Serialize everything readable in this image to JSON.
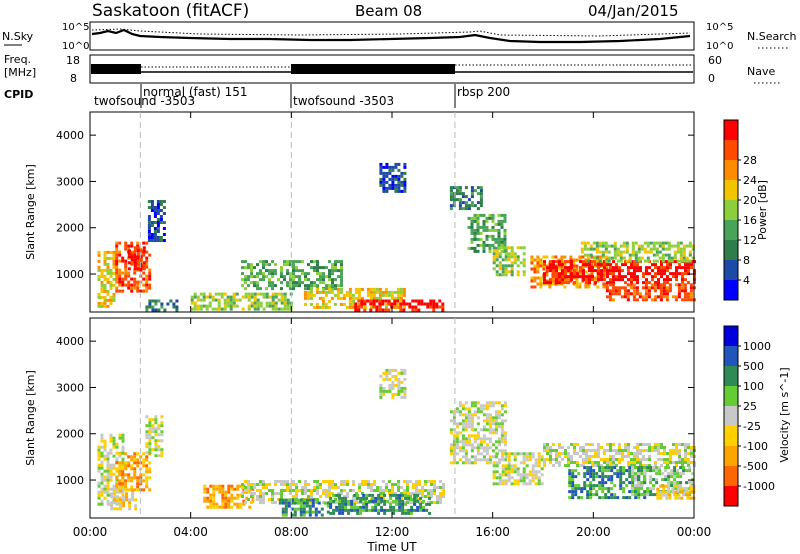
{
  "header": {
    "site": "Saskatoon (fitACF)",
    "beam": "Beam 08",
    "date": "04/Jan/2015"
  },
  "nsky_panel": {
    "left_label": "N.Sky",
    "right_label": "N.Search",
    "left_ticks": [
      "10^5",
      "10^0"
    ],
    "right_ticks": [
      "10^5",
      "10^0"
    ]
  },
  "freq_panel": {
    "left_label_1": "Freq.",
    "left_label_2": "[MHz]",
    "right_label": "Nave",
    "left_ticks": [
      "18",
      "8"
    ],
    "right_ticks": [
      "60",
      "0"
    ]
  },
  "cpid": {
    "label": "CPID",
    "modes": [
      {
        "name": "twofsound -3503",
        "start_hour": 0
      },
      {
        "name": "normal (fast) 151",
        "start_hour": 2
      },
      {
        "name": "twofsound -3503",
        "start_hour": 8
      },
      {
        "name": "rbsp 200",
        "start_hour": 14.5
      }
    ]
  },
  "time_axis": {
    "label": "Time UT",
    "ticks": [
      "00:00",
      "04:00",
      "08:00",
      "12:00",
      "16:00",
      "20:00",
      "00:00"
    ]
  },
  "colors": {
    "power": [
      "#0000ff",
      "#1c4aa6",
      "#2f7d4a",
      "#4aa35a",
      "#8ccf3a",
      "#f2c400",
      "#ff8c00",
      "#ff4a00",
      "#ff0000"
    ],
    "velocity": [
      "#0000dd",
      "#2255bb",
      "#2e8b57",
      "#66cc33",
      "#c8c8c8",
      "#ffd000",
      "#ffa500",
      "#ff6600",
      "#ff0000"
    ]
  },
  "chart_data": [
    {
      "type": "heatmap",
      "ylabel": "Slant Range [km]",
      "xlabel": "Time UT",
      "xlim": [
        0,
        24
      ],
      "ylim": [
        180,
        4500
      ],
      "yticks": [
        "1000",
        "2000",
        "3000",
        "4000"
      ],
      "colorbar": {
        "label": "Power [dB]",
        "ticks": [
          "4",
          "8",
          "12",
          "16",
          "20",
          "24",
          "28"
        ]
      },
      "regions": [
        {
          "t0": 0.3,
          "t1": 1.0,
          "r0": 300,
          "r1": 1500,
          "level": 5
        },
        {
          "t0": 1.0,
          "t1": 2.4,
          "r0": 600,
          "r1": 1700,
          "level": 7
        },
        {
          "t0": 1.5,
          "t1": 2.2,
          "r0": 1100,
          "r1": 1600,
          "level": 8
        },
        {
          "t0": 2.3,
          "t1": 2.9,
          "r0": 1700,
          "r1": 2600,
          "level": 1
        },
        {
          "t0": 2.2,
          "t1": 3.5,
          "r0": 250,
          "r1": 450,
          "level": 2
        },
        {
          "t0": 4.0,
          "t1": 8.0,
          "r0": 250,
          "r1": 600,
          "level": 4
        },
        {
          "t0": 6.0,
          "t1": 10.0,
          "r0": 700,
          "r1": 1300,
          "level": 3
        },
        {
          "t0": 8.5,
          "t1": 12.5,
          "r0": 250,
          "r1": 700,
          "level": 5
        },
        {
          "t0": 10.5,
          "t1": 14.0,
          "r0": 250,
          "r1": 450,
          "level": 8
        },
        {
          "t0": 11.5,
          "t1": 12.5,
          "r0": 2800,
          "r1": 3400,
          "level": 1
        },
        {
          "t0": 14.3,
          "t1": 15.5,
          "r0": 2400,
          "r1": 2900,
          "level": 2
        },
        {
          "t0": 15.0,
          "t1": 16.5,
          "r0": 1500,
          "r1": 2300,
          "level": 3
        },
        {
          "t0": 16.0,
          "t1": 17.3,
          "r0": 1000,
          "r1": 1600,
          "level": 4
        },
        {
          "t0": 17.5,
          "t1": 20.5,
          "r0": 700,
          "r1": 1400,
          "level": 6
        },
        {
          "t0": 18.0,
          "t1": 24.0,
          "r0": 800,
          "r1": 1300,
          "level": 8
        },
        {
          "t0": 19.5,
          "t1": 24.0,
          "r0": 1300,
          "r1": 1700,
          "level": 4
        },
        {
          "t0": 20.5,
          "t1": 24.0,
          "r0": 450,
          "r1": 800,
          "level": 7
        }
      ]
    },
    {
      "type": "heatmap",
      "ylabel": "Slant Range [km]",
      "xlabel": "Time UT",
      "xlim": [
        0,
        24
      ],
      "ylim": [
        180,
        4500
      ],
      "yticks": [
        "1000",
        "2000",
        "3000",
        "4000"
      ],
      "colorbar": {
        "label": "Velocity [m s^-1]",
        "ticks": [
          "1000",
          "500",
          "100",
          "25",
          "-25",
          "-100",
          "-500",
          "-1000"
        ]
      },
      "regions": [
        {
          "t0": 0.3,
          "t1": 1.3,
          "r0": 500,
          "r1": 2000,
          "level": 4
        },
        {
          "t0": 1.0,
          "t1": 2.4,
          "r0": 800,
          "r1": 1600,
          "level": 2
        },
        {
          "t0": 0.8,
          "t1": 1.8,
          "r0": 400,
          "r1": 800,
          "level": 3
        },
        {
          "t0": 2.2,
          "t1": 2.9,
          "r0": 1500,
          "r1": 2400,
          "level": 4
        },
        {
          "t0": 4.5,
          "t1": 6.5,
          "r0": 400,
          "r1": 900,
          "level": 2
        },
        {
          "t0": 6.0,
          "t1": 14.0,
          "r0": 500,
          "r1": 1000,
          "level": 4
        },
        {
          "t0": 7.5,
          "t1": 9.5,
          "r0": 250,
          "r1": 600,
          "level": 6
        },
        {
          "t0": 9.5,
          "t1": 13.5,
          "r0": 250,
          "r1": 700,
          "level": 6
        },
        {
          "t0": 11.5,
          "t1": 12.5,
          "r0": 2800,
          "r1": 3400,
          "level": 4
        },
        {
          "t0": 14.3,
          "t1": 16.5,
          "r0": 1400,
          "r1": 2700,
          "level": 4
        },
        {
          "t0": 16.0,
          "t1": 18.0,
          "r0": 900,
          "r1": 1600,
          "level": 4
        },
        {
          "t0": 18.0,
          "t1": 24.0,
          "r0": 1300,
          "r1": 1800,
          "level": 4
        },
        {
          "t0": 19.0,
          "t1": 22.0,
          "r0": 600,
          "r1": 1300,
          "level": 6
        },
        {
          "t0": 21.5,
          "t1": 24.0,
          "r0": 700,
          "r1": 1300,
          "level": 5
        },
        {
          "t0": 22.5,
          "t1": 24.0,
          "r0": 600,
          "r1": 900,
          "level": 3
        }
      ]
    }
  ]
}
